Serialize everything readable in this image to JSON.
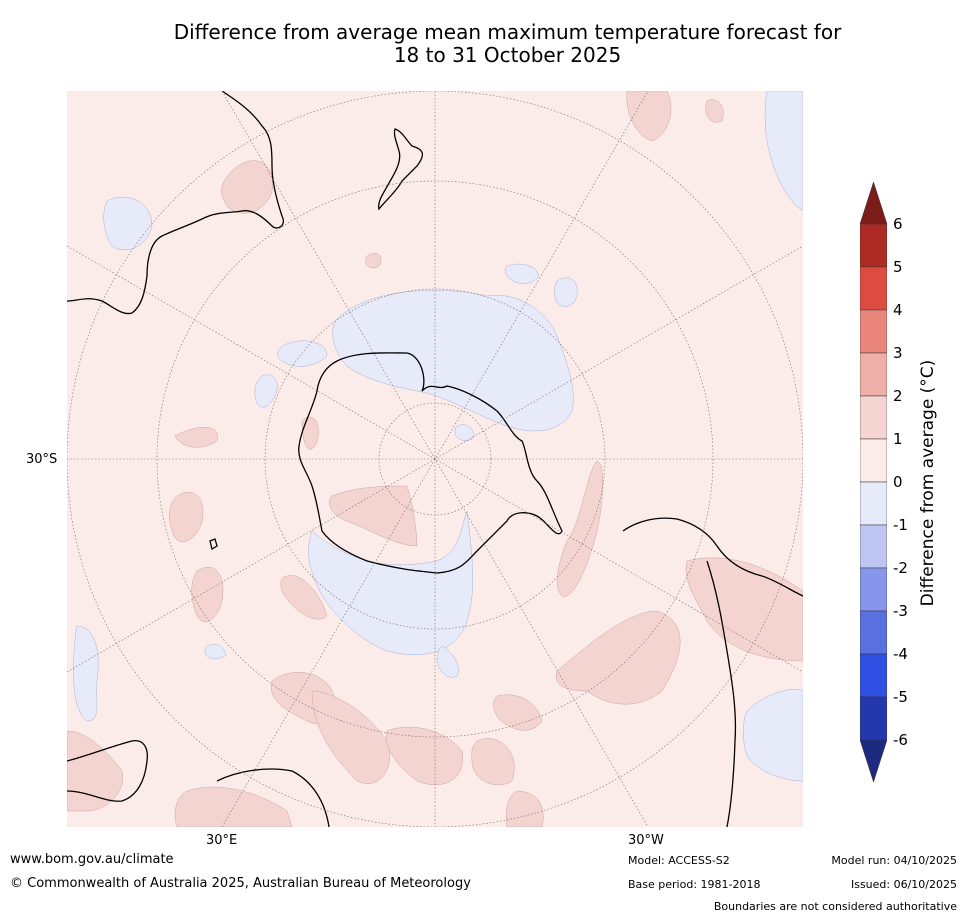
{
  "title": {
    "line1": "Difference from average mean maximum temperature forecast for",
    "line2": "18 to 31 October 2025"
  },
  "map": {
    "projection": "South polar stereographic",
    "lat_label": "30°S",
    "lon_labels": [
      "30°E",
      "30°W"
    ]
  },
  "legend": {
    "title": "Difference from average (°C)",
    "ticks": [
      "6",
      "5",
      "4",
      "3",
      "2",
      "1",
      "0",
      "-1",
      "-2",
      "-3",
      "-4",
      "-5",
      "-6"
    ],
    "colors": {
      "above_6": "#7a1d1a",
      "5_to_6": "#ac2b24",
      "4_to_5": "#de4c41",
      "3_to_4": "#ea857c",
      "2_to_3": "#edafa8",
      "1_to_2": "#f4d4d1",
      "0_to_1": "#fbecea",
      "m1_to_0": "#e7eaf9",
      "m2_to_m1": "#c0c6f2",
      "m3_to_m2": "#8796ec",
      "m4_to_m3": "#5a70e0",
      "m5_to_m4": "#2f4ee2",
      "m6_to_m5": "#2537ad",
      "below_m6": "#1e2a80"
    }
  },
  "footer": {
    "url": "www.bom.gov.au/climate",
    "copyright": "© Commonwealth of Australia 2025, Australian Bureau of Meteorology",
    "model": "Model: ACCESS-S2",
    "base_period": "Base period: 1981-2018",
    "model_run": "Model run: 04/10/2025",
    "issued": "Issued: 06/10/2025",
    "disclaimer": "Boundaries are not considered authoritative"
  }
}
